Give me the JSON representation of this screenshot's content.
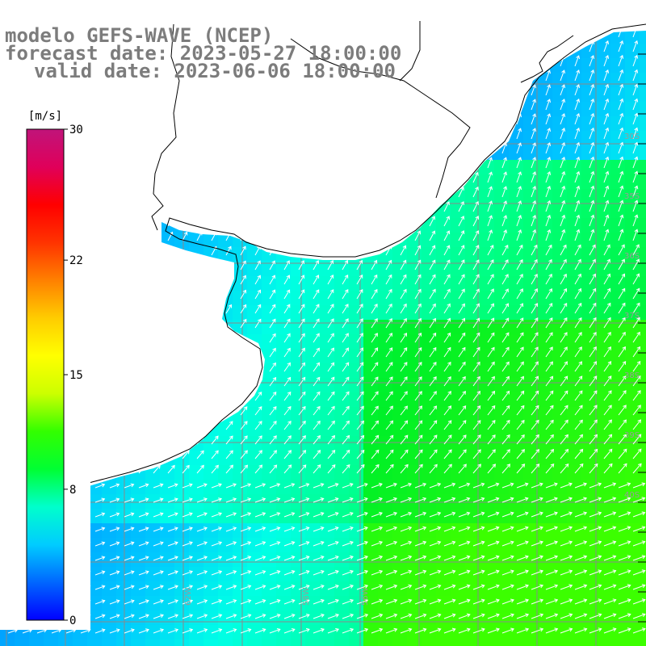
{
  "header": {
    "model": "modelo GEFS-WAVE (NCEP)",
    "forecast": "forecast date: 2023-05-27 18:00:00",
    "valid": "valid date: 2023-06-06 18:00:00"
  },
  "colorbar": {
    "units": "[m/s]",
    "ticks": [
      "30",
      "22",
      "15",
      "8",
      "0"
    ],
    "tick_values": [
      30,
      22,
      15,
      8,
      0
    ],
    "colors": [
      "#0000ff",
      "#0066ff",
      "#00ccff",
      "#00ffcc",
      "#00ff33",
      "#33ff00",
      "#ccff00",
      "#ffff00",
      "#ffcc00",
      "#ff8000",
      "#ff3300",
      "#ff0000",
      "#e0005a",
      "#c0147a"
    ]
  },
  "map": {
    "latitude_labels": [
      "30S",
      "35S",
      "36S",
      "37S",
      "38S",
      "39S",
      "40S"
    ],
    "longitude_labels": [
      "64W",
      "62W",
      "58W",
      "56W"
    ],
    "variable": "wind speed",
    "land_color": "#ffffff",
    "coast_color": "#000000",
    "grid_color": "#8a8a8a",
    "arrow_color": "#ffffff"
  }
}
